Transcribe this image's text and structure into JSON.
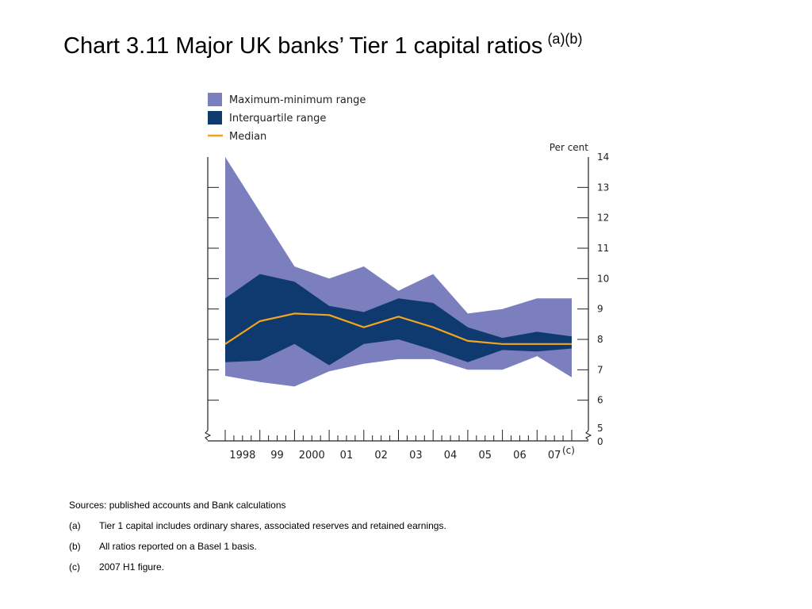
{
  "title": {
    "text": "Chart 3.11  Major UK banks’ Tier 1 capital ratios",
    "superscript": "(a)(b)"
  },
  "chart_data": {
    "type": "area",
    "series": [
      {
        "name": "Maximum-minimum range",
        "color": "#7b7fbd",
        "x": [
          1997.5,
          1998.5,
          1999.5,
          2000.5,
          2001.5,
          2002.5,
          2003.5,
          2004.5,
          2005.5,
          2006.5,
          2007.5
        ],
        "upper": [
          14.0,
          12.2,
          10.4,
          10.0,
          10.4,
          9.6,
          10.15,
          8.85,
          9.0,
          9.35,
          9.35
        ],
        "lower": [
          6.8,
          6.6,
          6.45,
          6.95,
          7.2,
          7.35,
          7.35,
          7.0,
          7.0,
          7.45,
          6.75
        ]
      },
      {
        "name": "Interquartile range",
        "color": "#0e3a70",
        "x": [
          1997.5,
          1998.5,
          1999.5,
          2000.5,
          2001.5,
          2002.5,
          2003.5,
          2004.5,
          2005.5,
          2006.5,
          2007.5
        ],
        "upper": [
          9.35,
          10.15,
          9.9,
          9.1,
          8.9,
          9.35,
          9.2,
          8.4,
          8.05,
          8.25,
          8.1
        ],
        "lower": [
          7.25,
          7.3,
          7.85,
          7.15,
          7.85,
          8.0,
          7.65,
          7.25,
          7.65,
          7.6,
          7.7
        ]
      },
      {
        "name": "Median",
        "color": "#f5a41d",
        "x": [
          1997.5,
          1998.5,
          1999.5,
          2000.5,
          2001.5,
          2002.5,
          2003.5,
          2004.5,
          2005.5,
          2006.5,
          2007.5
        ],
        "values": [
          7.85,
          8.6,
          8.85,
          8.8,
          8.4,
          8.75,
          8.4,
          7.95,
          7.85,
          7.85,
          7.85
        ]
      }
    ],
    "y_unit": "Per cent",
    "y_ticks": [
      "0",
      "5",
      "6",
      "7",
      "8",
      "9",
      "10",
      "11",
      "12",
      "13",
      "14"
    ],
    "ylim": [
      5,
      14
    ],
    "axis_break": true,
    "x_tick_labels": [
      "1998",
      "99",
      "2000",
      "01",
      "02",
      "03",
      "04",
      "05",
      "06",
      "07"
    ],
    "x_tick_note": "(c)",
    "xlim": [
      1997.5,
      2007.5
    ],
    "legend_position": "top-left",
    "grid": false
  },
  "notes": {
    "sources": "Sources: published accounts and Bank calculations",
    "items": [
      {
        "mark": "(a)",
        "text": "Tier 1 capital includes ordinary shares, associated reserves and retained earnings."
      },
      {
        "mark": "(b)",
        "text": "All ratios reported on a Basel 1 basis."
      },
      {
        "mark": "(c)",
        "text": "2007 H1 figure."
      }
    ]
  }
}
